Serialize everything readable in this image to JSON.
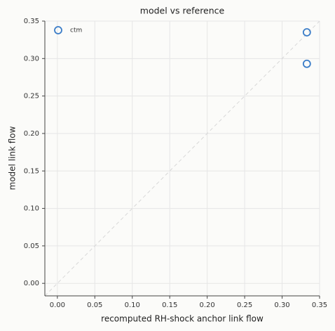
{
  "chart_data": {
    "type": "scatter",
    "title": "model vs reference",
    "x_label": "recomputed RH-shock anchor link flow",
    "y_label": "model link flow",
    "series": [
      {
        "name": "ctm",
        "color": "#3b7dc8",
        "x": [
          0.333,
          0.333
        ],
        "values": [
          0.335,
          0.293
        ]
      }
    ],
    "xlim": [
      -0.0167,
      0.35
    ],
    "ylim": [
      -0.0167,
      0.35
    ],
    "xticks": [
      {
        "value": 0,
        "label": "0.00"
      },
      0.05,
      {
        "value": 0.1,
        "label": "0.10"
      },
      0.15,
      {
        "value": 0.2,
        "label": "0.20"
      },
      0.25,
      {
        "value": 0.3,
        "label": "0.30"
      },
      0.35
    ],
    "yticks": [
      {
        "value": 0,
        "label": "0.00"
      },
      0.05,
      {
        "value": 0.1,
        "label": "0.10"
      },
      0.15,
      {
        "value": 0.2,
        "label": "0.20"
      },
      0.25,
      {
        "value": 0.3,
        "label": "0.30"
      },
      0.35
    ],
    "grid": true,
    "legend": "upper left"
  }
}
